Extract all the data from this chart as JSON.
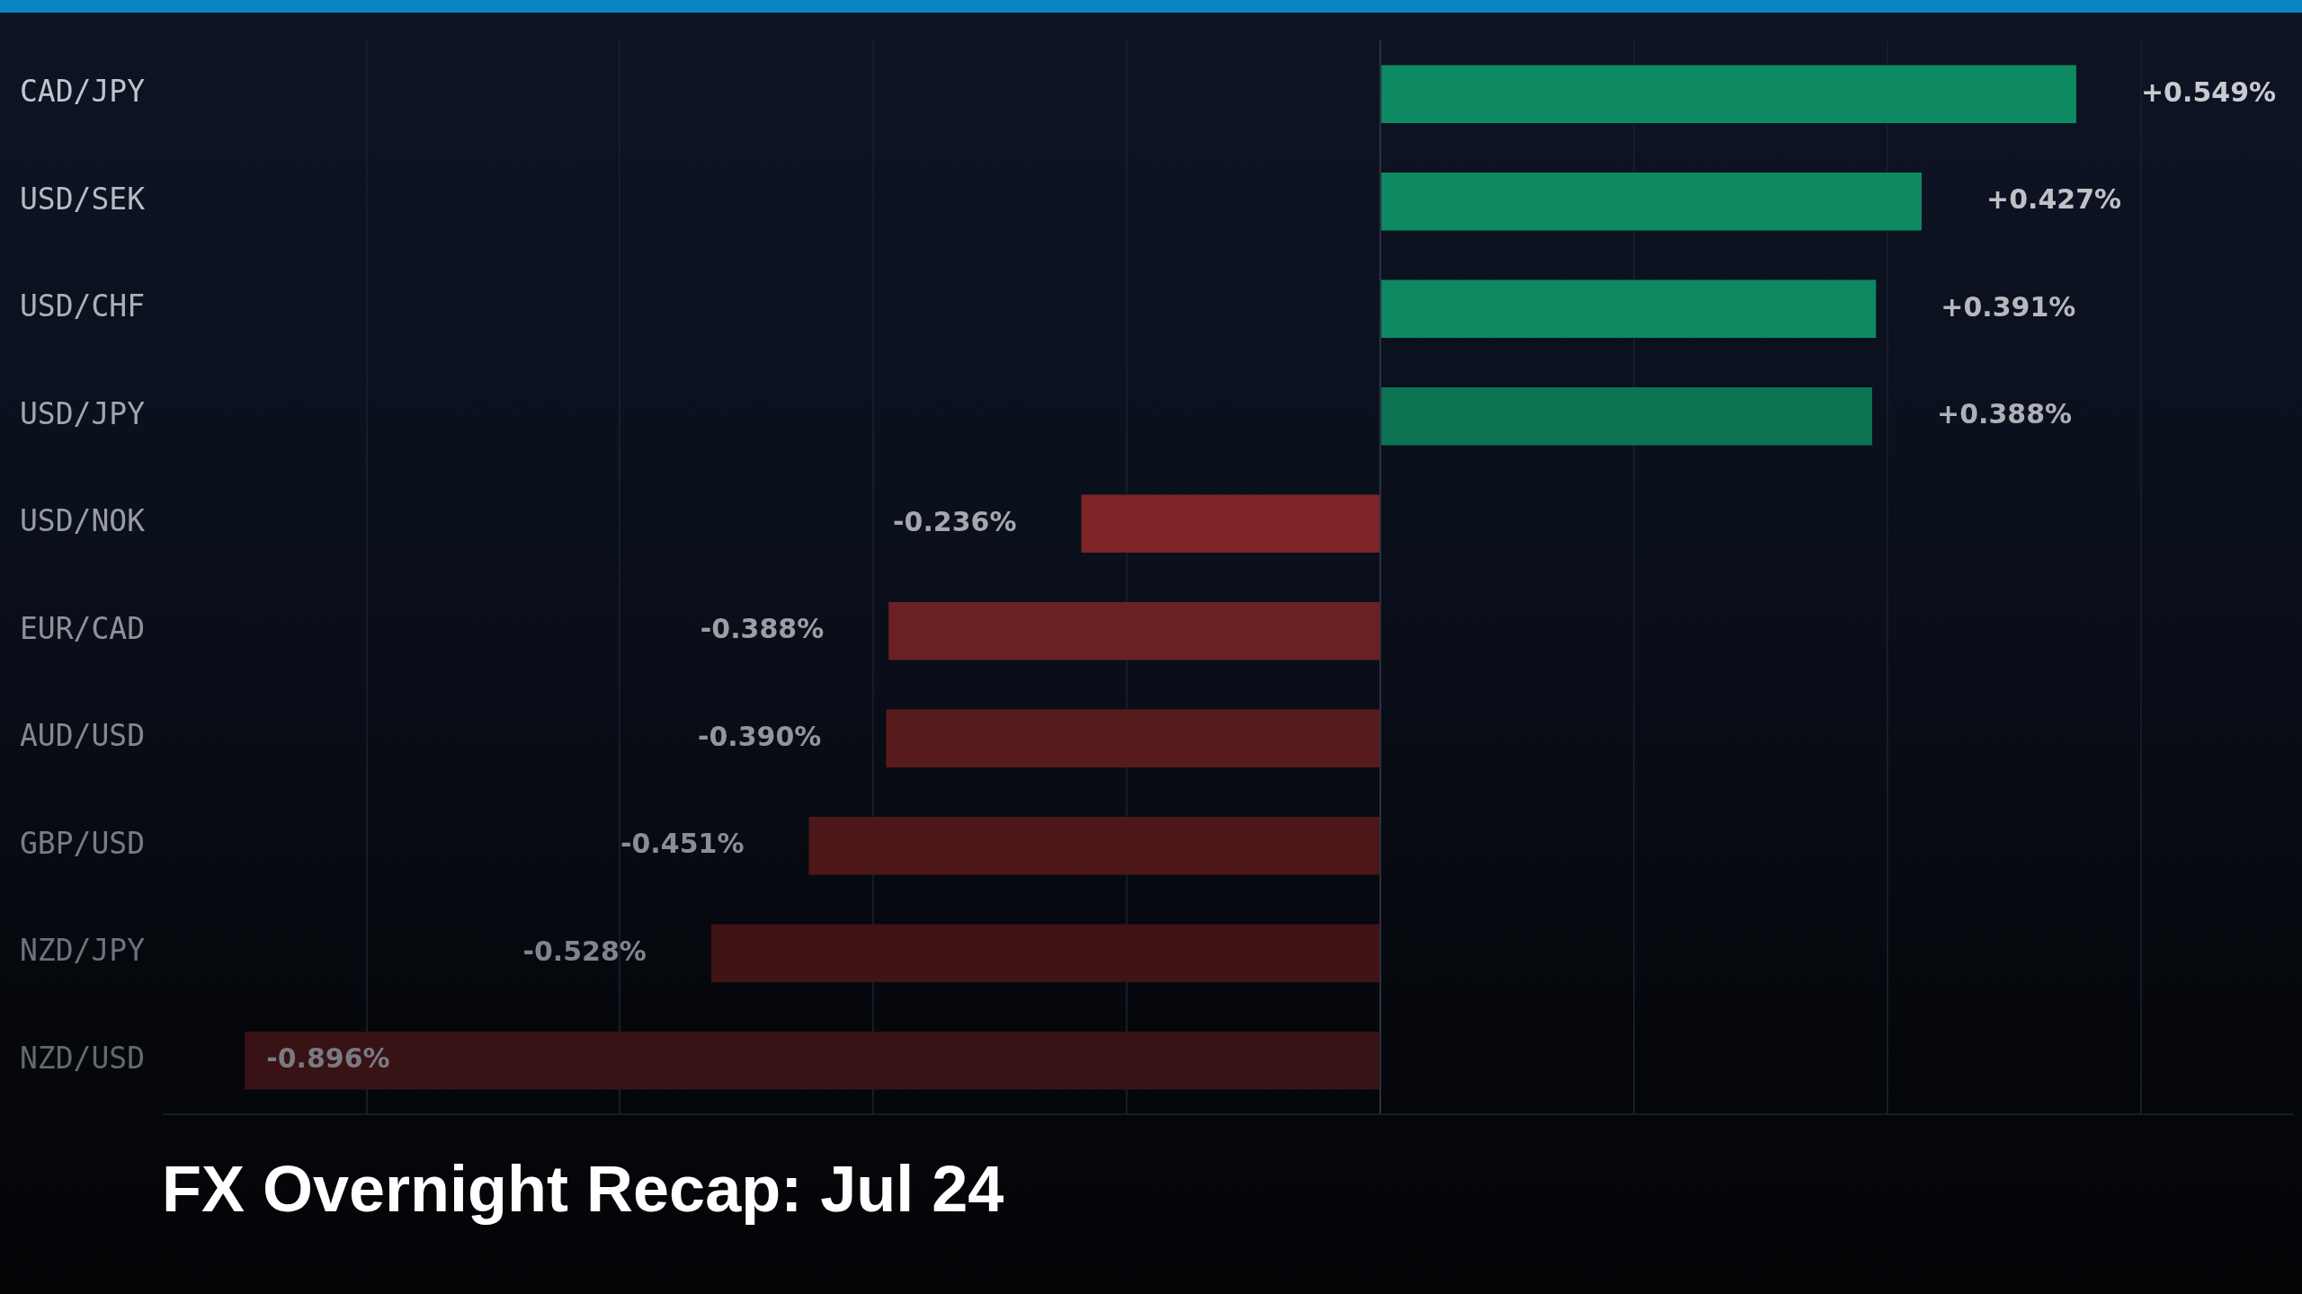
{
  "chart_data": {
    "type": "bar",
    "orientation": "horizontal",
    "title": "FX Overnight Recap: Jul 24",
    "categories": [
      "CAD/JPY",
      "USD/SEK",
      "USD/CHF",
      "USD/JPY",
      "USD/NOK",
      "EUR/CAD",
      "AUD/USD",
      "GBP/USD",
      "NZD/JPY",
      "NZD/USD"
    ],
    "values": [
      0.549,
      0.427,
      0.391,
      0.388,
      -0.236,
      -0.388,
      -0.39,
      -0.451,
      -0.528,
      -0.896
    ],
    "value_labels": [
      "+0.549%",
      "+0.427%",
      "+0.391%",
      "+0.388%",
      "-0.236%",
      "-0.388%",
      "-0.390%",
      "-0.451%",
      "-0.528%",
      "-0.896%"
    ],
    "colors": [
      "#0e8a62",
      "#0e8a62",
      "#0e8962",
      "#0c7353",
      "#7f2427",
      "#6b2023",
      "#581b1d",
      "#4c1718",
      "#401415",
      "#381214"
    ],
    "xlim": [
      -0.96,
      0.72
    ],
    "xticks": [
      {
        "value": -0.8,
        "label": null
      },
      {
        "value": -0.6,
        "label": null
      },
      {
        "value": -0.4,
        "label": null
      },
      {
        "value": -0.2,
        "label": null
      },
      {
        "value": 0,
        "label": null
      },
      {
        "value": 0.2,
        "label": null
      },
      {
        "value": 0.4,
        "label": null
      },
      {
        "value": 0.6,
        "label": null
      }
    ],
    "grid": "x",
    "tick_labels": "y"
  }
}
